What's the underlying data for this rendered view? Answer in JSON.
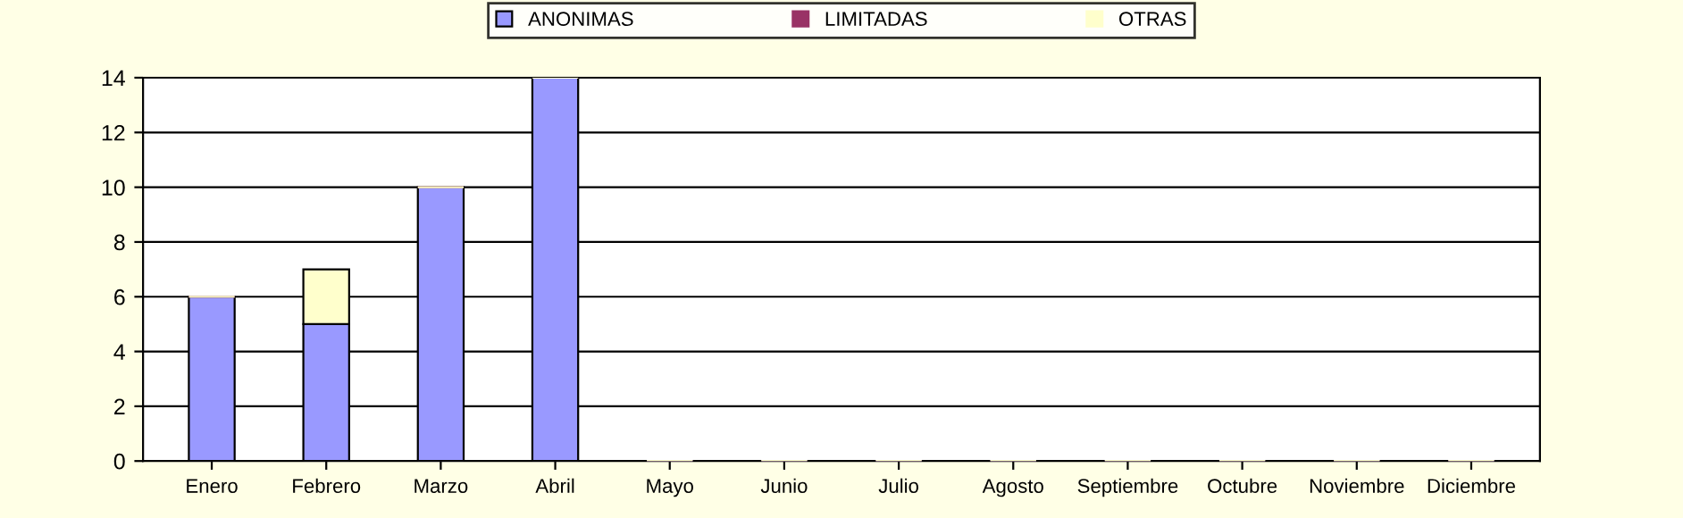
{
  "chart_data": {
    "type": "bar",
    "stacked": true,
    "categories": [
      "Enero",
      "Febrero",
      "Marzo",
      "Abril",
      "Mayo",
      "Junio",
      "Julio",
      "Agosto",
      "Septiembre",
      "Octubre",
      "Noviembre",
      "Diciembre"
    ],
    "series": [
      {
        "name": "ANONIMAS",
        "color": "#9999ff",
        "values": [
          6,
          5,
          10,
          14,
          0,
          0,
          0,
          0,
          0,
          0,
          0,
          0
        ]
      },
      {
        "name": "LIMITADAS",
        "color": "#993366",
        "values": [
          0,
          0,
          0,
          0,
          0,
          0,
          0,
          0,
          0,
          0,
          0,
          0
        ]
      },
      {
        "name": "OTRAS",
        "color": "#ffffcc",
        "values": [
          0,
          2,
          0,
          0,
          0,
          0,
          0,
          0,
          0,
          0,
          0,
          0
        ]
      }
    ],
    "ylim": [
      0,
      14
    ],
    "yticks": [
      0,
      2,
      4,
      6,
      8,
      10,
      12,
      14
    ],
    "grid": "y",
    "legend": "top"
  }
}
